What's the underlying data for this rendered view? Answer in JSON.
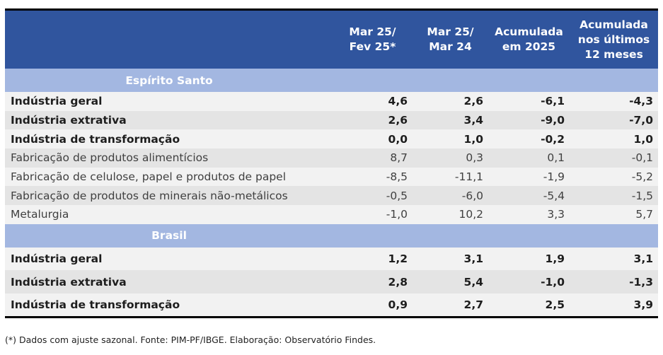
{
  "headers": [
    "",
    "Mar 25/\nFev 25*",
    "Mar 25/\nMar 24",
    "Acumulada\nem 2025",
    "Acumulada\nnos últimos\n12 meses"
  ],
  "sections": [
    {
      "title": "Espírito Santo",
      "rows": [
        {
          "label": "Indústria geral",
          "bold": true,
          "values": [
            "4,6",
            "2,6",
            "-6,1",
            "-4,3"
          ]
        },
        {
          "label": "Indústria extrativa",
          "bold": true,
          "values": [
            "2,6",
            "3,4",
            "-9,0",
            "-7,0"
          ]
        },
        {
          "label": "Indústria de transformação",
          "bold": true,
          "values": [
            "0,0",
            "1,0",
            "-0,2",
            "1,0"
          ]
        },
        {
          "label": "Fabricação de produtos alimentícios",
          "bold": false,
          "values": [
            "8,7",
            "0,3",
            "0,1",
            "-0,1"
          ]
        },
        {
          "label": "Fabricação de celulose, papel e produtos de papel",
          "bold": false,
          "values": [
            "-8,5",
            "-11,1",
            "-1,9",
            "-5,2"
          ]
        },
        {
          "label": "Fabricação de produtos de minerais não-metálicos",
          "bold": false,
          "values": [
            "-0,5",
            "-6,0",
            "-5,4",
            "-1,5"
          ]
        },
        {
          "label": "Metalurgia",
          "bold": false,
          "values": [
            "-1,0",
            "10,2",
            "3,3",
            "5,7"
          ]
        }
      ]
    },
    {
      "title": "Brasil",
      "rows": [
        {
          "label": "Indústria geral",
          "bold": true,
          "values": [
            "1,2",
            "3,1",
            "1,9",
            "3,1"
          ]
        },
        {
          "label": "Indústria extrativa",
          "bold": true,
          "values": [
            "2,8",
            "5,4",
            "-1,0",
            "-1,3"
          ]
        },
        {
          "label": "Indústria de transformação",
          "bold": true,
          "values": [
            "0,9",
            "2,7",
            "2,5",
            "3,9"
          ]
        }
      ]
    }
  ],
  "footnote": "(*) Dados com ajuste sazonal. Fonte: PIM-PF/IBGE. Elaboração: Observatório Findes."
}
